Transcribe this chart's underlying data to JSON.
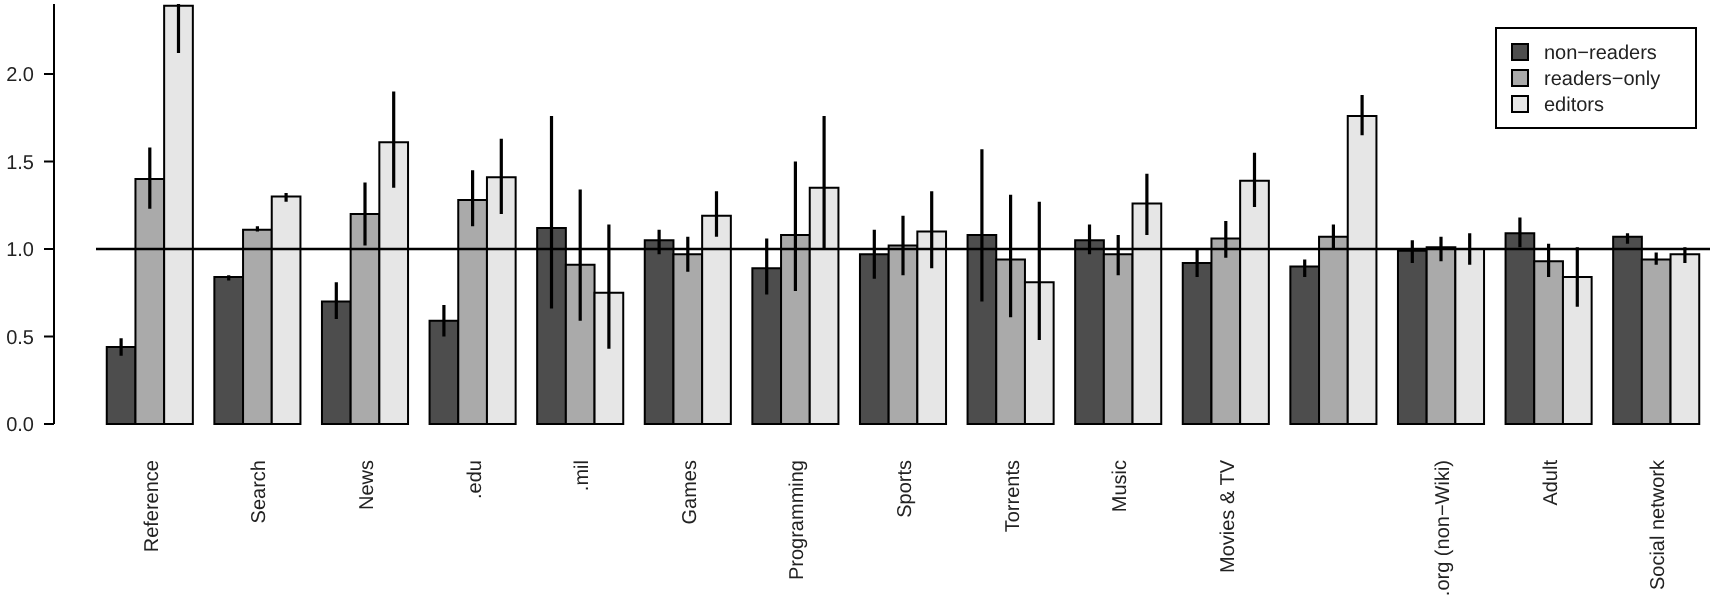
{
  "chart_data": {
    "type": "bar",
    "categories": [
      "Reference",
      "Search",
      "News",
      ".edu",
      ".mil",
      "Games",
      "Programming",
      "Sports",
      "Torrents",
      "Music",
      "Movies & TV",
      null,
      ".org (non−Wiki)",
      "Adult",
      "Social network"
    ],
    "series": [
      {
        "name": "non−readers",
        "color": "#4d4d4d",
        "values": [
          0.44,
          0.84,
          0.7,
          0.59,
          1.12,
          1.05,
          0.89,
          0.97,
          1.08,
          1.05,
          0.92,
          0.9,
          0.99,
          1.09,
          1.07
        ],
        "errors": [
          [
            0.39,
            0.49
          ],
          [
            0.82,
            0.85
          ],
          [
            0.6,
            0.81
          ],
          [
            0.5,
            0.68
          ],
          [
            0.66,
            1.76
          ],
          [
            0.97,
            1.11
          ],
          [
            0.74,
            1.06
          ],
          [
            0.83,
            1.11
          ],
          [
            0.7,
            1.57
          ],
          [
            0.97,
            1.14
          ],
          [
            0.84,
            1.0
          ],
          [
            0.84,
            0.94
          ],
          [
            0.92,
            1.05
          ],
          [
            1.01,
            1.18
          ],
          [
            1.03,
            1.09
          ]
        ]
      },
      {
        "name": "readers−only",
        "color": "#aaaaaa",
        "values": [
          1.4,
          1.11,
          1.2,
          1.28,
          0.91,
          0.97,
          1.08,
          1.02,
          0.94,
          0.97,
          1.06,
          1.07,
          1.01,
          0.93,
          0.94
        ],
        "errors": [
          [
            1.23,
            1.58
          ],
          [
            1.1,
            1.13
          ],
          [
            1.02,
            1.38
          ],
          [
            1.13,
            1.45
          ],
          [
            0.59,
            1.34
          ],
          [
            0.87,
            1.07
          ],
          [
            0.76,
            1.5
          ],
          [
            0.85,
            1.19
          ],
          [
            0.61,
            1.31
          ],
          [
            0.85,
            1.08
          ],
          [
            0.95,
            1.16
          ],
          [
            1.0,
            1.14
          ],
          [
            0.93,
            1.07
          ],
          [
            0.84,
            1.03
          ],
          [
            0.91,
            0.98
          ]
        ]
      },
      {
        "name": "editors",
        "color": "#e6e6e6",
        "values": [
          2.39,
          1.3,
          1.61,
          1.41,
          0.75,
          1.19,
          1.35,
          1.1,
          0.81,
          1.26,
          1.39,
          1.76,
          1.0,
          0.84,
          0.97
        ],
        "errors": [
          [
            2.12,
            2.4
          ],
          [
            1.27,
            1.32
          ],
          [
            1.35,
            1.9
          ],
          [
            1.2,
            1.63
          ],
          [
            0.43,
            1.14
          ],
          [
            1.07,
            1.33
          ],
          [
            1.0,
            1.76
          ],
          [
            0.89,
            1.33
          ],
          [
            0.48,
            1.27
          ],
          [
            1.08,
            1.43
          ],
          [
            1.24,
            1.55
          ],
          [
            1.65,
            1.88
          ],
          [
            0.91,
            1.09
          ],
          [
            0.67,
            1.01
          ],
          [
            0.92,
            1.01
          ]
        ]
      }
    ],
    "ylim": [
      0,
      2.4
    ],
    "yticks": [
      {
        "value": 0,
        "label": "0.0"
      },
      {
        "value": 0.5,
        "label": "0.5"
      },
      {
        "value": 1,
        "label": "1.0"
      },
      {
        "value": 1.5,
        "label": "1.5"
      },
      {
        "value": 2,
        "label": "2.0"
      }
    ],
    "ref_lines": [
      {
        "axis": "y",
        "value": 1,
        "color": "#000000"
      }
    ],
    "legend": "top right",
    "grid": false
  }
}
